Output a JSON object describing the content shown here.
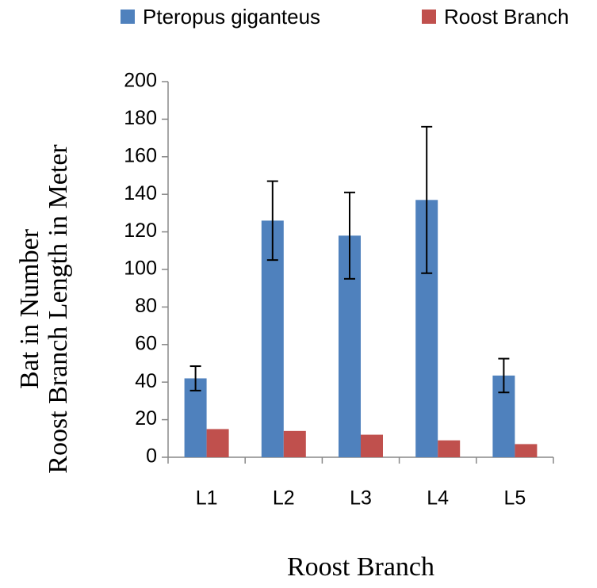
{
  "chart_data": {
    "type": "bar",
    "x_label": "Roost Branch",
    "y_label": [
      "Bat in Number",
      "Roost Branch Length in Meter"
    ],
    "categories": [
      "L1",
      "L2",
      "L3",
      "L4",
      "L5"
    ],
    "series": [
      {
        "name": "Pteropus giganteus",
        "color": "#4f81bd",
        "values": [
          42,
          126,
          118,
          137,
          43.5
        ],
        "errors": [
          6.5,
          21,
          23,
          39,
          9
        ]
      },
      {
        "name": "Roost Branch",
        "color": "#c0504d",
        "values": [
          15,
          14,
          12,
          9,
          7
        ]
      }
    ],
    "ylim": [
      0,
      200
    ],
    "yticks": [
      0,
      20,
      40,
      60,
      80,
      100,
      120,
      140,
      160,
      180,
      200
    ],
    "legend": "top"
  }
}
